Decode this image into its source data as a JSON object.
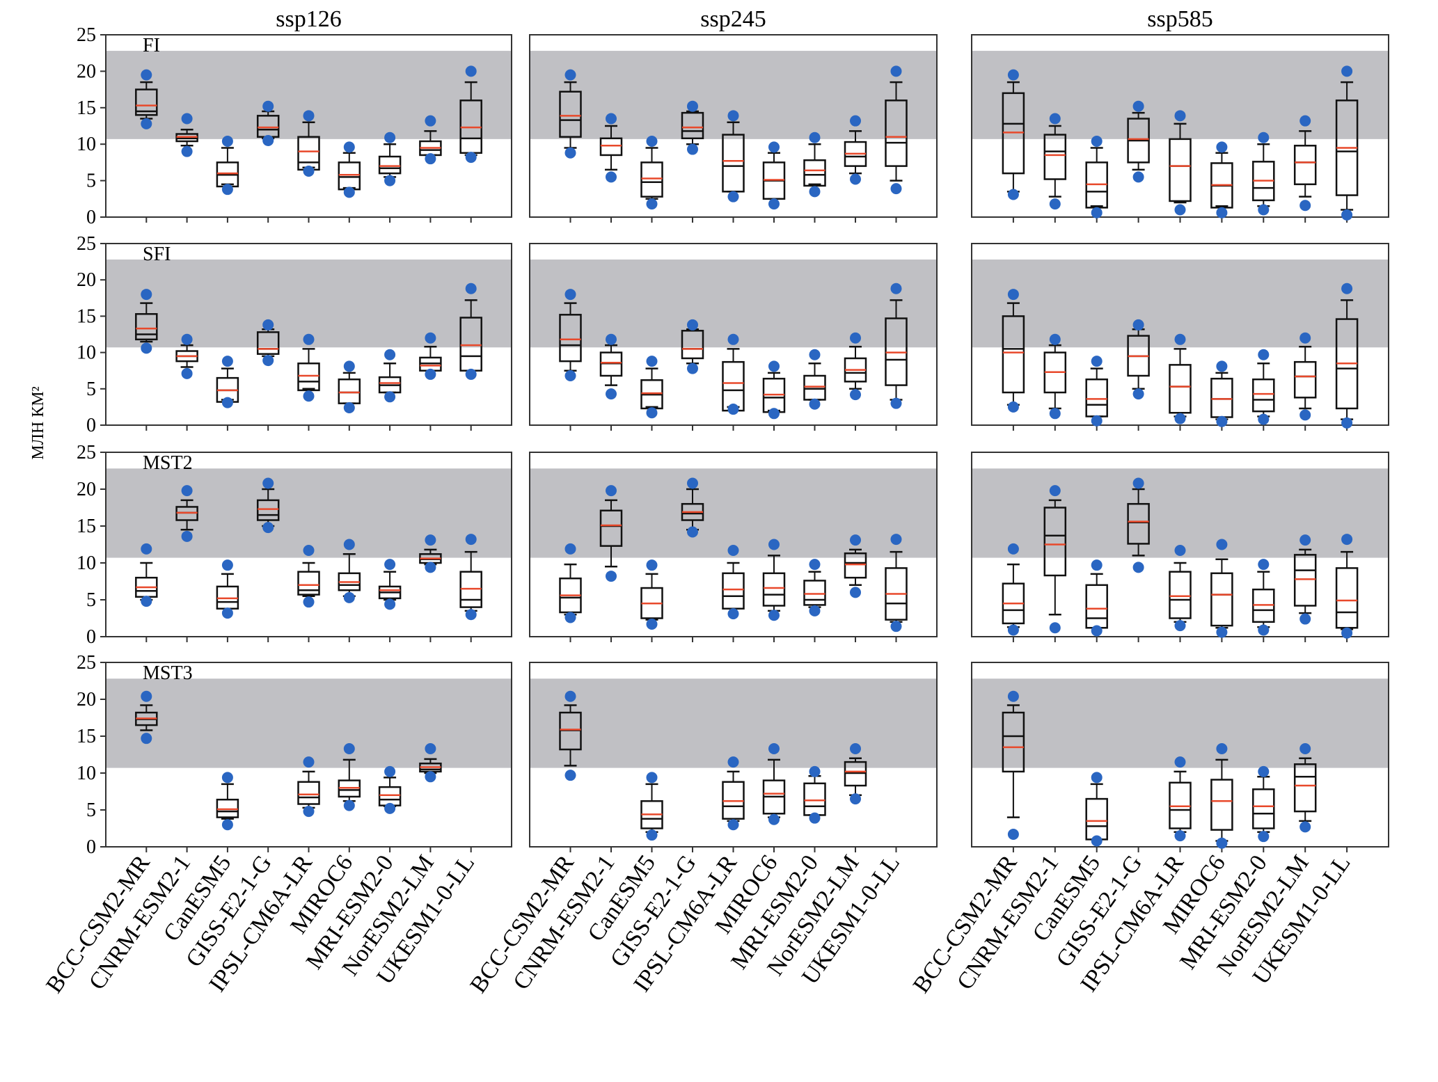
{
  "figure": {
    "ylabel": "МЛН  КМ²",
    "colors": {
      "band": "#c0c0c4",
      "median": "#e8492b",
      "dot": "#2a66c2",
      "box": "#111111"
    }
  },
  "chart_data": {
    "type": "box",
    "layout_grid": "4 rows x 3 columns of panels",
    "columns": [
      "ssp126",
      "ssp245",
      "ssp585"
    ],
    "rows": [
      "FI",
      "SFI",
      "MST2",
      "MST3"
    ],
    "models": [
      "BCC-CSM2-MR",
      "CNRM-ESM2-1",
      "CanESM5",
      "GISS-E2-1-G",
      "IPSL-CM6A-LR",
      "MIROC6",
      "MRI-ESM2-0",
      "NorESM2-LM",
      "UKESM1-0-LL"
    ],
    "ylim": [
      0,
      25
    ],
    "yticks": [
      0,
      5,
      10,
      15,
      20,
      25
    ],
    "observed_band": [
      10.7,
      22.8
    ],
    "box_fields": [
      "whisker_low",
      "q1",
      "median",
      "mean",
      "q3",
      "whisker_high",
      "dot_low",
      "dot_high"
    ],
    "panels": [
      {
        "row": "FI",
        "scenario": "ssp126",
        "boxes": [
          [
            13.5,
            14,
            14.5,
            15.3,
            17.5,
            18.5,
            12.8,
            19.5
          ],
          [
            9.8,
            10.4,
            10.8,
            11,
            11.4,
            12,
            9,
            13.5
          ],
          [
            4.5,
            4.2,
            5.8,
            6,
            7.5,
            9.5,
            3.8,
            10.4
          ],
          [
            10.8,
            11,
            12,
            12.3,
            13.9,
            14.5,
            10.5,
            15.2
          ],
          [
            6.8,
            6.5,
            7.5,
            9,
            11,
            13,
            6.3,
            13.9
          ],
          [
            4,
            3.8,
            5.5,
            5.8,
            7.5,
            8.8,
            3.4,
            9.6
          ],
          [
            5.5,
            6,
            6.7,
            7,
            8.3,
            10,
            5,
            10.9
          ],
          [
            8.5,
            8.5,
            9.2,
            9.5,
            10.4,
            11.8,
            8,
            13.2
          ],
          [
            8.5,
            8.8,
            10.8,
            12.3,
            16,
            18.5,
            8.2,
            20
          ]
        ]
      },
      {
        "row": "FI",
        "scenario": "ssp245",
        "boxes": [
          [
            9.5,
            11,
            13.3,
            13.9,
            17.2,
            18.5,
            8.8,
            19.5
          ],
          [
            6.5,
            8.5,
            9.8,
            9.8,
            10.8,
            12.5,
            5.5,
            13.5
          ],
          [
            2.5,
            2.8,
            4.8,
            5.3,
            7.5,
            9.5,
            1.8,
            10.4
          ],
          [
            10,
            10.8,
            11.8,
            12.3,
            14.3,
            14.5,
            9.3,
            15.2
          ],
          [
            3.5,
            3.5,
            7,
            7.7,
            11.3,
            13,
            2.8,
            13.9
          ],
          [
            2.5,
            2.5,
            5,
            5.1,
            7.5,
            8.8,
            1.8,
            9.6
          ],
          [
            4.5,
            4.3,
            5.8,
            6.4,
            7.8,
            10,
            3.5,
            10.9
          ],
          [
            6,
            7,
            8.3,
            8.7,
            10.3,
            11.8,
            5.2,
            13.2
          ],
          [
            5,
            7,
            10.2,
            11,
            16,
            18.5,
            3.9,
            20
          ]
        ]
      },
      {
        "row": "FI",
        "scenario": "ssp585",
        "boxes": [
          [
            3.5,
            6,
            12.8,
            11.6,
            17,
            18.5,
            3.1,
            19.5
          ],
          [
            2.8,
            5.2,
            9,
            8.5,
            11.3,
            12.5,
            1.8,
            13.5
          ],
          [
            1.5,
            1.3,
            3.5,
            4.5,
            7.5,
            9.5,
            0.6,
            10.4
          ],
          [
            6.5,
            7.5,
            10.5,
            10.7,
            13.5,
            14.3,
            5.5,
            15.2
          ],
          [
            2,
            2.2,
            7,
            7,
            10.7,
            12.8,
            1,
            13.9
          ],
          [
            1.5,
            1.3,
            4.3,
            4.4,
            7.4,
            8.8,
            0.6,
            9.6
          ],
          [
            1.5,
            2.3,
            4,
            5,
            7.6,
            10,
            1,
            10.9
          ],
          [
            2.8,
            4.5,
            7.5,
            7.5,
            9.8,
            11.8,
            1.6,
            13.2
          ],
          [
            1,
            3,
            9,
            9.5,
            16,
            18.5,
            0.3,
            20
          ]
        ]
      },
      {
        "row": "SFI",
        "scenario": "ssp126",
        "boxes": [
          [
            11.5,
            11.8,
            12.5,
            13.3,
            15.3,
            16.8,
            10.6,
            18
          ],
          [
            8,
            8.8,
            9.5,
            9.5,
            10.2,
            11,
            7.1,
            11.8
          ],
          [
            3.5,
            3.2,
            4.8,
            4.8,
            6.5,
            7.8,
            3.1,
            8.8
          ],
          [
            9.5,
            9.8,
            10.5,
            10.5,
            12.8,
            13.2,
            8.9,
            13.8
          ],
          [
            5,
            4.8,
            6,
            6.8,
            8.5,
            10.5,
            4,
            11.8
          ],
          [
            3,
            3,
            4.5,
            4.5,
            6.3,
            7.2,
            2.4,
            8.1
          ],
          [
            4.5,
            4.5,
            5.5,
            5.8,
            6.6,
            8.5,
            3.9,
            9.7
          ],
          [
            7.5,
            7.5,
            8.5,
            8.2,
            9.3,
            10.8,
            7,
            12
          ],
          [
            7.5,
            7.5,
            9.5,
            11,
            14.8,
            17.2,
            7,
            18.8
          ]
        ]
      },
      {
        "row": "SFI",
        "scenario": "ssp245",
        "boxes": [
          [
            7.5,
            8.8,
            11,
            11.8,
            15.2,
            16.8,
            6.8,
            18
          ],
          [
            5.5,
            6.8,
            8.5,
            8.6,
            10,
            11,
            4.3,
            11.8
          ],
          [
            2.5,
            2.3,
            4.2,
            4.4,
            6.2,
            7.8,
            1.7,
            8.8
          ],
          [
            8.5,
            9.2,
            10.5,
            10.5,
            13,
            13.2,
            7.8,
            13.8
          ],
          [
            2.5,
            2,
            4.8,
            5.8,
            8.7,
            10.5,
            2.2,
            11.8
          ],
          [
            2,
            1.8,
            3.8,
            4.2,
            6.4,
            7.2,
            1.6,
            8.1
          ],
          [
            3.5,
            3.5,
            5,
            5.3,
            6.8,
            8.5,
            2.9,
            9.7
          ],
          [
            5,
            6,
            7.2,
            7.6,
            9.2,
            10.8,
            4.2,
            12
          ],
          [
            3.5,
            5.5,
            9,
            10,
            14.7,
            17.2,
            3,
            18.8
          ]
        ]
      },
      {
        "row": "SFI",
        "scenario": "ssp585",
        "boxes": [
          [
            2.8,
            4.5,
            10.5,
            10,
            15,
            16.8,
            2.5,
            18
          ],
          [
            2.3,
            4.5,
            7.3,
            7.3,
            10,
            11,
            1.6,
            11.8
          ],
          [
            1.2,
            1.2,
            2.8,
            3.6,
            6.3,
            7.8,
            0.6,
            8.8
          ],
          [
            5,
            6.8,
            9.5,
            9.5,
            12.3,
            13.2,
            4.3,
            13.8
          ],
          [
            1.2,
            1.7,
            5.3,
            5.3,
            8.3,
            10.5,
            0.9,
            11.8
          ],
          [
            0.8,
            1.1,
            3.6,
            3.6,
            6.4,
            7.2,
            0.5,
            8.1
          ],
          [
            1.2,
            1.9,
            3.5,
            4.3,
            6.3,
            8.5,
            0.8,
            9.7
          ],
          [
            2.3,
            3.8,
            6.7,
            6.7,
            8.7,
            10.8,
            1.4,
            12
          ],
          [
            0.8,
            2.3,
            7.8,
            8.5,
            14.6,
            17.2,
            0.3,
            18.8
          ]
        ]
      },
      {
        "row": "MST2",
        "scenario": "ssp126",
        "boxes": [
          [
            5,
            5.4,
            6.2,
            6.7,
            8,
            10,
            4.8,
            11.9
          ],
          [
            14.5,
            15.8,
            16.8,
            16.8,
            17.6,
            18.5,
            13.6,
            19.8
          ],
          [
            3.8,
            3.8,
            4.7,
            5.2,
            6.8,
            8.5,
            3.2,
            9.7
          ],
          [
            15,
            15.8,
            16.5,
            17.3,
            18.5,
            20,
            14.8,
            20.8
          ],
          [
            5.5,
            5.7,
            6.3,
            7,
            8.8,
            10,
            4.7,
            11.7
          ],
          [
            5.5,
            6.3,
            7,
            7.4,
            8.6,
            11.2,
            5.3,
            12.5
          ],
          [
            5,
            5.2,
            6,
            6.3,
            6.8,
            8.8,
            4.4,
            9.8
          ],
          [
            9.8,
            10,
            10.5,
            10.6,
            11.2,
            11.8,
            9.4,
            13.1
          ],
          [
            3.5,
            4,
            5,
            6.5,
            8.8,
            11.5,
            3,
            13.2
          ]
        ]
      },
      {
        "row": "MST2",
        "scenario": "ssp245",
        "boxes": [
          [
            3,
            3.3,
            5.3,
            5.6,
            7.9,
            9.8,
            2.6,
            11.9
          ],
          [
            9.5,
            12.3,
            15,
            15.1,
            17.1,
            18.5,
            8.2,
            19.8
          ],
          [
            2.3,
            2.5,
            4.5,
            4.5,
            6.6,
            8.5,
            1.7,
            9.7
          ],
          [
            14.5,
            15.8,
            16.7,
            16.9,
            18,
            20,
            14.2,
            20.8
          ],
          [
            3.8,
            3.8,
            5.5,
            6.4,
            8.6,
            10,
            3.1,
            11.7
          ],
          [
            3.5,
            4.2,
            5.7,
            6.6,
            8.6,
            11,
            2.9,
            12.5
          ],
          [
            4,
            4.3,
            5,
            5.8,
            7.6,
            8.8,
            3.5,
            9.8
          ],
          [
            7,
            8,
            10,
            9.8,
            11.3,
            11.8,
            6,
            13.1
          ],
          [
            2,
            2.3,
            4.5,
            5.8,
            9.3,
            11.5,
            1.4,
            13.2
          ]
        ]
      },
      {
        "row": "MST2",
        "scenario": "ssp585",
        "boxes": [
          [
            1.3,
            1.8,
            3.6,
            4.5,
            7.2,
            9.8,
            0.9,
            11.9
          ],
          [
            3,
            8.3,
            13.7,
            12.5,
            17.5,
            18.5,
            1.2,
            19.8
          ],
          [
            1.2,
            1.2,
            2.5,
            3.8,
            7,
            8.5,
            0.8,
            9.7
          ],
          [
            11,
            12.6,
            15.5,
            15.6,
            18,
            20,
            9.4,
            20.8
          ],
          [
            2,
            2.5,
            5,
            5.5,
            8.8,
            10,
            1.5,
            11.7
          ],
          [
            1.2,
            1.5,
            5.7,
            5.7,
            8.6,
            10.5,
            0.6,
            12.5
          ],
          [
            1.3,
            2,
            3.6,
            4.3,
            6.4,
            8.8,
            0.9,
            9.8
          ],
          [
            3.2,
            4.2,
            9,
            7.8,
            11.1,
            11.8,
            2.4,
            13.1
          ],
          [
            1,
            1.2,
            3.3,
            4.9,
            9.3,
            11.5,
            0.5,
            13.2
          ]
        ]
      },
      {
        "row": "MST3",
        "scenario": "ssp126",
        "boxes": [
          [
            15.8,
            16.5,
            17.3,
            17.4,
            18.2,
            19.2,
            14.7,
            20.4
          ],
          [
            3.8,
            4,
            4.8,
            5.1,
            6.4,
            8.5,
            3,
            9.4
          ],
          [
            5.3,
            5.8,
            6.7,
            7.1,
            8.8,
            10.2,
            4.8,
            11.5
          ],
          [
            6.2,
            6.8,
            7.7,
            8,
            9,
            11.8,
            5.6,
            13.3
          ],
          [
            5.5,
            5.6,
            6.4,
            7,
            8.1,
            9.4,
            5.2,
            10.2
          ],
          [
            10,
            10.2,
            10.5,
            10.8,
            11.3,
            11.9,
            9.5,
            13.3
          ]
        ],
        "positions": [
          0,
          2,
          4,
          5,
          6,
          7
        ]
      },
      {
        "row": "MST3",
        "scenario": "ssp245",
        "boxes": [
          [
            11,
            13.2,
            15.8,
            15.9,
            18.2,
            19.2,
            9.7,
            20.4
          ],
          [
            2,
            2.5,
            3.8,
            4.4,
            6.2,
            8.5,
            1.6,
            9.4
          ],
          [
            3.5,
            3.8,
            5.5,
            6.2,
            8.8,
            10.2,
            3,
            11.5
          ],
          [
            4,
            4.5,
            6.8,
            7.2,
            9,
            11.8,
            3.7,
            13.3
          ],
          [
            4.3,
            4.3,
            5.5,
            6.3,
            8.6,
            9.6,
            3.9,
            10.2
          ],
          [
            7,
            8.3,
            10,
            10.2,
            11.5,
            12,
            6.5,
            13.3
          ]
        ],
        "positions": [
          0,
          2,
          4,
          5,
          6,
          7
        ]
      },
      {
        "row": "MST3",
        "scenario": "ssp585",
        "boxes": [
          [
            4,
            10.2,
            15,
            13.5,
            18.2,
            19.2,
            1.7,
            20.4
          ],
          [
            1,
            1,
            2.8,
            3.5,
            6.5,
            8.5,
            0.8,
            9.4
          ],
          [
            2,
            2.5,
            5,
            5.5,
            8.7,
            10.2,
            1.5,
            11.5
          ],
          [
            0.8,
            2.3,
            6.2,
            6.2,
            9.1,
            11.8,
            0.5,
            13.3
          ],
          [
            2,
            2.5,
            4.5,
            5.5,
            7.8,
            9.5,
            1.4,
            10.2
          ],
          [
            3.5,
            4.8,
            9.5,
            8.3,
            11.2,
            12,
            2.7,
            13.3
          ]
        ],
        "positions": [
          0,
          2,
          4,
          5,
          6,
          7
        ]
      }
    ]
  }
}
